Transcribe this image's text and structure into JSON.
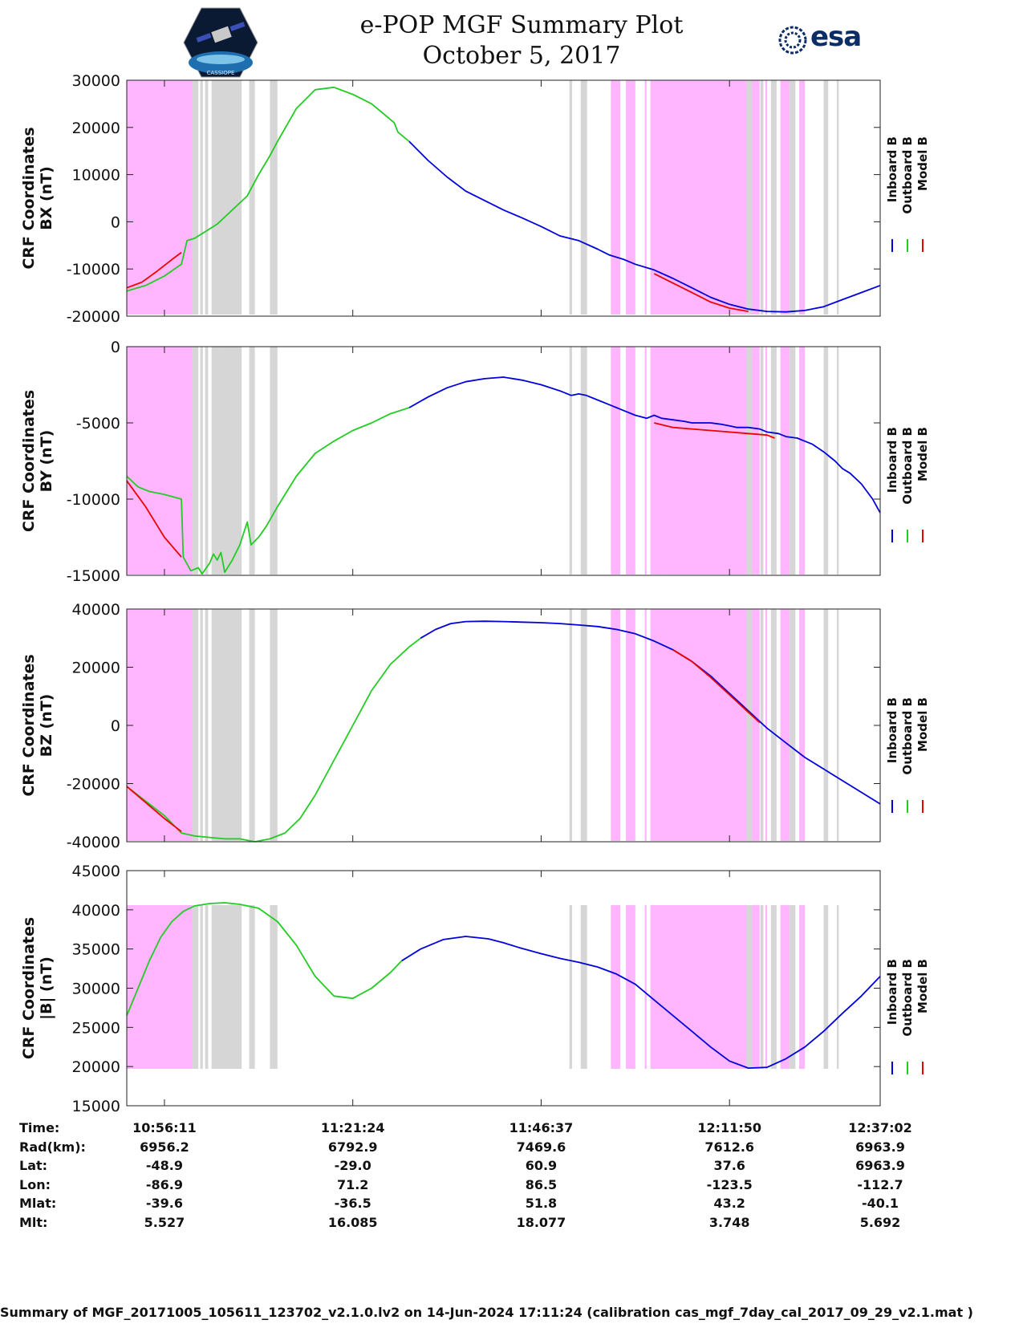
{
  "header": {
    "title": "e-POP MGF Summary Plot",
    "date": "October 5, 2017",
    "logo_left_text": "CASSIOPE",
    "logo_right_text": "esa"
  },
  "legend": {
    "inboard": "Inboard B",
    "outboard": "Outboard B",
    "model": "Model B"
  },
  "colors": {
    "inboard": "#0000dd",
    "outboard": "#22cc22",
    "model": "#ee0000",
    "shade_magenta": "#ffb6ff",
    "shade_grey": "#d6d6d6"
  },
  "chart_data": [
    {
      "type": "line",
      "ylabel_line1": "CRF Coordinates",
      "ylabel_line2": "BX (nT)",
      "ylim": [
        -20000,
        30000
      ],
      "yticks": [
        -20000,
        -10000,
        0,
        10000,
        20000,
        30000
      ],
      "series": [
        {
          "name": "Outboard B",
          "x": [
            0,
            5,
            10,
            14.5,
            16,
            18,
            20,
            22,
            24,
            26,
            28,
            30,
            32,
            35,
            38,
            40,
            45,
            50,
            55
          ],
          "y": [
            -14700,
            -13500,
            -11500,
            -9000,
            -4000,
            -3500,
            -2500,
            -1500,
            -500,
            1000,
            2500,
            4000,
            5500,
            10000,
            14000,
            17000,
            24000,
            28000,
            28500
          ]
        },
        {
          "name": "Outboard B",
          "x": [
            55,
            60,
            65,
            71,
            72,
            75
          ],
          "y": [
            28500,
            27000,
            25000,
            21000,
            19000,
            17000
          ]
        },
        {
          "name": "Inboard B",
          "x": [
            75,
            80,
            85,
            90,
            95,
            100,
            105,
            110,
            115,
            120,
            125,
            128,
            132,
            135,
            140,
            145,
            150,
            155,
            160,
            165,
            170,
            175,
            180,
            185,
            190,
            195,
            200
          ],
          "y": [
            17000,
            13000,
            9500,
            6500,
            4500,
            2500,
            800,
            -1000,
            -3000,
            -4000,
            -5800,
            -7000,
            -8000,
            -9000,
            -10200,
            -12000,
            -14000,
            -16000,
            -17500,
            -18500,
            -19000,
            -19100,
            -18800,
            -18000,
            -16500,
            -15000,
            -13500
          ]
        },
        {
          "name": "Model B",
          "x": [
            0,
            4,
            8,
            12,
            14.5
          ],
          "y": [
            -14000,
            -12800,
            -10500,
            -8000,
            -6500
          ]
        },
        {
          "name": "Model B",
          "x": [
            140,
            145,
            150,
            155,
            160,
            165
          ],
          "y": [
            -11000,
            -13000,
            -15000,
            -17000,
            -18300,
            -19000
          ]
        }
      ]
    },
    {
      "type": "line",
      "ylabel_line1": "CRF Coordinates",
      "ylabel_line2": "BY (nT)",
      "ylim": [
        -15000,
        0
      ],
      "yticks": [
        -15000,
        -10000,
        -5000,
        0
      ],
      "series": [
        {
          "name": "Outboard B",
          "x": [
            0,
            3,
            6,
            10,
            14.5,
            15,
            17,
            19,
            20,
            22,
            23,
            24,
            25,
            26,
            28,
            30,
            32,
            33,
            35,
            37,
            40,
            45,
            50,
            55,
            60,
            65,
            70,
            75
          ],
          "y": [
            -8500,
            -9200,
            -9500,
            -9700,
            -10000,
            -13800,
            -14700,
            -14500,
            -14900,
            -14200,
            -13600,
            -14000,
            -13500,
            -14800,
            -14000,
            -13000,
            -11500,
            -13000,
            -12500,
            -11800,
            -10500,
            -8500,
            -7000,
            -6200,
            -5500,
            -5000,
            -4400,
            -4000
          ]
        },
        {
          "name": "Inboard B",
          "x": [
            75,
            80,
            85,
            90,
            95,
            100,
            105,
            110,
            115,
            118,
            120,
            122,
            125,
            128,
            130,
            132,
            135,
            138,
            140,
            142,
            145,
            148,
            150,
            152,
            155,
            158,
            160,
            162,
            165,
            168,
            170,
            173,
            175,
            178,
            180,
            182,
            185,
            188,
            190,
            192,
            195,
            198,
            200
          ],
          "y": [
            -4000,
            -3300,
            -2700,
            -2300,
            -2100,
            -2000,
            -2200,
            -2500,
            -2900,
            -3200,
            -3100,
            -3200,
            -3500,
            -3800,
            -4000,
            -4200,
            -4500,
            -4700,
            -4500,
            -4700,
            -4800,
            -4900,
            -5000,
            -5000,
            -5000,
            -5100,
            -5200,
            -5300,
            -5300,
            -5400,
            -5600,
            -5700,
            -5900,
            -6000,
            -6200,
            -6400,
            -6900,
            -7500,
            -8000,
            -8300,
            -9000,
            -10000,
            -10900
          ]
        },
        {
          "name": "Model B",
          "x": [
            0,
            5,
            10,
            14.5
          ],
          "y": [
            -8800,
            -10500,
            -12500,
            -13800
          ]
        },
        {
          "name": "Model B",
          "x": [
            140,
            145,
            150,
            155,
            160,
            165,
            170,
            172
          ],
          "y": [
            -5000,
            -5300,
            -5400,
            -5500,
            -5600,
            -5700,
            -5800,
            -6000
          ]
        }
      ]
    },
    {
      "type": "line",
      "ylabel_line1": "CRF Coordinates",
      "ylabel_line2": "BZ (nT)",
      "ylim": [
        -40000,
        40000
      ],
      "yticks": [
        -40000,
        -20000,
        0,
        20000,
        40000
      ],
      "series": [
        {
          "name": "Outboard B",
          "x": [
            0,
            5,
            10,
            14.5,
            18,
            22,
            26,
            30,
            34,
            38,
            42,
            46,
            50,
            55,
            60,
            65,
            70,
            75,
            78
          ],
          "y": [
            -21000,
            -26000,
            -31000,
            -37000,
            -38000,
            -38500,
            -39000,
            -39000,
            -40000,
            -39000,
            -37000,
            -32000,
            -24000,
            -12000,
            0,
            12000,
            21000,
            27000,
            30000
          ]
        },
        {
          "name": "Inboard B",
          "x": [
            78,
            82,
            86,
            90,
            95,
            100,
            105,
            110,
            115,
            120,
            125,
            130,
            135,
            140,
            145,
            150,
            155,
            160,
            165,
            170,
            175,
            180,
            185,
            190,
            195,
            200
          ],
          "y": [
            30000,
            33000,
            35000,
            35700,
            35800,
            35700,
            35500,
            35300,
            35000,
            34500,
            34000,
            33000,
            31500,
            29000,
            26000,
            22000,
            17000,
            11000,
            5000,
            -1000,
            -6000,
            -11000,
            -15000,
            -19000,
            -23000,
            -27000
          ]
        },
        {
          "name": "Model B",
          "x": [
            0,
            5,
            10,
            14.5
          ],
          "y": [
            -21000,
            -26500,
            -32000,
            -36500
          ]
        },
        {
          "name": "Model B",
          "x": [
            145,
            150,
            155,
            160,
            165,
            168
          ],
          "y": [
            26000,
            22000,
            16500,
            10500,
            4500,
            1000
          ]
        }
      ]
    },
    {
      "type": "line",
      "ylabel_line1": "CRF Coordinates",
      "ylabel_line2": "|B| (nT)",
      "ylim": [
        15000,
        45000
      ],
      "yticks": [
        15000,
        20000,
        25000,
        30000,
        35000,
        40000,
        45000
      ],
      "series": [
        {
          "name": "Outboard B",
          "x": [
            0,
            3,
            6,
            9,
            12,
            15,
            18,
            22,
            26,
            30,
            35,
            40,
            45,
            50,
            55,
            60,
            65,
            70,
            73
          ],
          "y": [
            26500,
            30000,
            33500,
            36500,
            38500,
            39800,
            40500,
            40800,
            40900,
            40700,
            40200,
            38500,
            35500,
            31500,
            29000,
            28700,
            30000,
            32000,
            33500
          ]
        },
        {
          "name": "Inboard B",
          "x": [
            73,
            78,
            84,
            90,
            96,
            100,
            104,
            110,
            115,
            120,
            125,
            130,
            135,
            140,
            145,
            150,
            155,
            160,
            165,
            170,
            175,
            180,
            185,
            190,
            195,
            200
          ],
          "y": [
            33500,
            35000,
            36200,
            36600,
            36300,
            35800,
            35200,
            34400,
            33800,
            33300,
            32700,
            31800,
            30500,
            28500,
            26500,
            24500,
            22500,
            20700,
            19800,
            19900,
            21000,
            22500,
            24500,
            26800,
            29000,
            31500
          ]
        }
      ]
    }
  ],
  "x_axis": {
    "ticks_at": [
      10,
      60,
      110,
      160,
      200
    ],
    "time": [
      "10:56:11",
      "11:21:24",
      "11:46:37",
      "12:11:50",
      "12:37:02"
    ]
  },
  "info_table": {
    "labels": [
      "Time:",
      "Rad(km):",
      "Lat:",
      "Lon:",
      "Mlat:",
      "Mlt:"
    ],
    "columns": [
      [
        "10:56:11",
        "6956.2",
        "-48.9",
        "-86.9",
        "-39.6",
        "5.527"
      ],
      [
        "11:21:24",
        "6792.9",
        "-29.0",
        "71.2",
        "-36.5",
        "16.085"
      ],
      [
        "11:46:37",
        "7469.6",
        "60.9",
        "86.5",
        "51.8",
        "18.077"
      ],
      [
        "12:11:50",
        "7612.6",
        "37.6",
        "-123.5",
        "43.2",
        "3.748"
      ],
      [
        "12:37:02",
        "6963.9",
        "6963.9",
        "-112.7",
        "-40.1",
        "5.692"
      ]
    ]
  },
  "footer": "Summary of MGF_20171005_105611_123702_v2.1.0.lv2 on 14-Jun-2024 17:11:24 (calibration cas_mgf_7day_cal_2017_09_29_v2.1.mat )",
  "bands": {
    "magenta": [
      [
        0,
        17.5
      ],
      [
        128.5,
        131
      ],
      [
        132.5,
        135
      ],
      [
        139,
        142.5
      ],
      [
        142.5,
        168
      ],
      [
        173.5,
        176
      ],
      [
        178.5,
        180
      ]
    ],
    "magenta_thin": [
      [
        129.5,
        130
      ],
      [
        137.5,
        138
      ],
      [
        164,
        164.5
      ],
      [
        169.5,
        170
      ]
    ],
    "grey": [
      [
        17.5,
        19
      ],
      [
        19.5,
        20.2
      ],
      [
        20.8,
        21.6
      ],
      [
        22.5,
        24.5
      ],
      [
        24.5,
        30.5
      ],
      [
        32.5,
        34
      ],
      [
        38,
        40
      ],
      [
        117.5,
        118.2
      ],
      [
        120.5,
        122.2
      ],
      [
        164.5,
        166
      ],
      [
        168.2,
        169
      ],
      [
        171,
        172.5
      ],
      [
        176,
        177.5
      ],
      [
        185,
        186.2
      ],
      [
        188.5,
        189
      ]
    ]
  }
}
